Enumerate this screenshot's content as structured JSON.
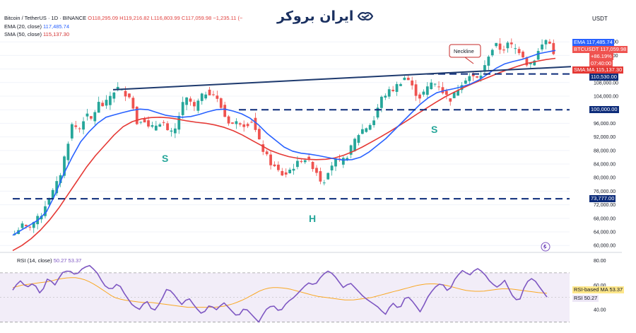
{
  "header": {
    "symbol": "Bitcoin / TetherUS · 1D · BINANCE",
    "ohlc": "O118,295.09 H119,216.82 L116,803.99 C117,059.98 −1,235.11 (−",
    "ema_label": "EMA (20, close)",
    "ema_value": "117,485.74",
    "sma_label": "SMA (50, close)",
    "sma_value": "115,137.30",
    "rsi_label": "RSI (14, close)",
    "rsi_values": "50.27 53.37"
  },
  "logo": {
    "text": "ایران بروکر",
    "icon": "handshake-icon"
  },
  "currency_label": "USDT",
  "colors": {
    "up": "#26a69a",
    "down": "#ef5350",
    "ema": "#2962ff",
    "sma": "#e53935",
    "rsi": "#7e57c2",
    "rsi_ma": "#f9a825",
    "annotation": "#0d47a1",
    "label_teal": "#26a69a"
  },
  "price_labels": [
    {
      "text": "EMA",
      "value": "117,485.74",
      "bg": "#2962ff",
      "fg": "#ffffff"
    },
    {
      "text": "BTCUSDT",
      "value": "117,059.98",
      "bg": "#ef5350",
      "fg": "#ffffff"
    },
    {
      "text": "",
      "value": "+86.19%",
      "bg": "#ef5350",
      "fg": "#ffffff"
    },
    {
      "text": "",
      "value": "07:40:00",
      "bg": "#ef5350",
      "fg": "#ffffff"
    },
    {
      "text": "SMA:MA",
      "value": "115,137.30",
      "bg": "#e53935",
      "fg": "#ffffff"
    },
    {
      "text": "",
      "value": "110,530.00",
      "bg": "#0d2c7a",
      "fg": "#ffffff"
    },
    {
      "text": "",
      "value": "100,000.00",
      "bg": "#0d2c7a",
      "fg": "#ffffff"
    },
    {
      "text": "",
      "value": "73,777.00",
      "bg": "#0d2c7a",
      "fg": "#ffffff"
    }
  ],
  "rsi_labels": [
    {
      "text": "RSI-based MA",
      "value": "53.37",
      "bg": "#fde68a",
      "fg": "#131722"
    },
    {
      "text": "RSI",
      "value": "50.27",
      "bg": "#ede7f6",
      "fg": "#131722"
    }
  ],
  "annotations": {
    "left_shoulder": "S",
    "head": "H",
    "right_shoulder": "S",
    "neckline": "Neckline"
  },
  "chart_data": {
    "type": "candlestick",
    "price_axis_ticks": [
      120000,
      116000,
      112000,
      108000,
      104000,
      100000,
      96000,
      92000,
      88000,
      84000,
      80000,
      76000,
      72000,
      68000,
      64000,
      60000
    ],
    "price_axis_tick_labels": [
      "120,000.00",
      "116,000.00",
      "112,000.00",
      "108,000.00",
      "104,000.00",
      "100,000.00",
      "96,000.00",
      "92,000.00",
      "88,000.00",
      "84,000.00",
      "80,000.00",
      "76,000.00",
      "72,000.00",
      "68,000.00",
      "64,000.00",
      "60,000.00"
    ],
    "price_range": [
      58800,
      124000
    ],
    "horizontal_levels": [
      110530,
      100000,
      73777
    ],
    "neckline": {
      "from": 105900,
      "to": 112700
    },
    "close_path": [
      63500,
      66000,
      65000,
      67000,
      68500,
      73000,
      76000,
      80000,
      88000,
      96000,
      94000,
      98500,
      97000,
      102000,
      101000,
      104500,
      106500,
      105000,
      104200,
      96000,
      98000,
      94000,
      95500,
      97000,
      92500,
      94000,
      101000,
      103500,
      100500,
      103500,
      105500,
      104500,
      101500,
      97000,
      95800,
      96500,
      95500,
      97000,
      91000,
      87000,
      84000,
      82000,
      80500,
      82500,
      84000,
      86000,
      84500,
      82000,
      78000,
      83000,
      85000,
      84500,
      87000,
      91000,
      94000,
      95000,
      97000,
      103000,
      105000,
      106000,
      108000,
      110000,
      106500,
      103500,
      105500,
      108000,
      107500,
      104500,
      103000,
      106000,
      109000,
      110000,
      109000,
      111000,
      117000,
      119000,
      117500,
      119500,
      118000,
      117000,
      113000,
      115000,
      118500,
      121000,
      117060
    ],
    "ema20_path": [
      63000,
      64500,
      66000,
      67500,
      70000,
      75000,
      81000,
      86000,
      90500,
      93500,
      96000,
      97800,
      98500,
      99200,
      99800,
      100200,
      100000,
      99200,
      98400,
      98000,
      97800,
      98000,
      98600,
      99400,
      100000,
      100200,
      99600,
      98800,
      97500,
      95500,
      93000,
      91000,
      89000,
      87800,
      87200,
      86900,
      86500,
      86000,
      85500,
      85200,
      85300,
      86000,
      87500,
      89500,
      91500,
      94000,
      96500,
      99000,
      101500,
      103500,
      105000,
      105700,
      106200,
      106800,
      107600,
      108800,
      110500,
      112200,
      113500,
      114200,
      114800,
      115600,
      116500,
      117000,
      117485
    ],
    "sma50_path": [
      58500,
      60000,
      62000,
      64500,
      67500,
      71000,
      75000,
      79000,
      83000,
      86500,
      89500,
      92500,
      95000,
      96500,
      97300,
      97700,
      97800,
      97600,
      97200,
      96700,
      96300,
      96000,
      95500,
      94800,
      93800,
      92500,
      91000,
      89500,
      88000,
      87000,
      86200,
      85700,
      85400,
      85300,
      85400,
      85800,
      86600,
      87700,
      89000,
      90500,
      92000,
      93600,
      95300,
      97000,
      98800,
      100500,
      102200,
      103800,
      105200,
      106500,
      107700,
      108800,
      109900,
      111000,
      112000,
      112900,
      113700,
      114300,
      114800,
      115137
    ],
    "rsi_ticks": [
      80,
      60,
      40
    ],
    "rsi_range": [
      24,
      86
    ],
    "rsi_band": [
      70,
      30
    ],
    "rsi_path": [
      56,
      64,
      58,
      62,
      52,
      66,
      60,
      70,
      72,
      68,
      74,
      76,
      70,
      60,
      56,
      62,
      52,
      44,
      40,
      48,
      38,
      46,
      58,
      52,
      44,
      50,
      42,
      36,
      44,
      40,
      46,
      40,
      34,
      42,
      36,
      30,
      40,
      44,
      38,
      46,
      50,
      56,
      62,
      60,
      68,
      72,
      66,
      58,
      62,
      56,
      50,
      46,
      42,
      36,
      46,
      40,
      52,
      46,
      38,
      50,
      58,
      62,
      54,
      66,
      72,
      68,
      74,
      70,
      62,
      58,
      64,
      52,
      46,
      62,
      66,
      58,
      50.27
    ],
    "rsi_ma_path": [
      58,
      60,
      61,
      62,
      63,
      65,
      66,
      66,
      64,
      60,
      55,
      50,
      48,
      47,
      46,
      46,
      45,
      44,
      43,
      42,
      42,
      42,
      42,
      43,
      45,
      48,
      52,
      56,
      58,
      58,
      57,
      55,
      53,
      51,
      50,
      49,
      48,
      48,
      49,
      50,
      52,
      54,
      56,
      58,
      60,
      61,
      61,
      60,
      58,
      56,
      55,
      55,
      56,
      57,
      57,
      56,
      55,
      54,
      53.37
    ],
    "current_price": 117059.98,
    "ema_value": 117485.74,
    "sma_value": 115137.3,
    "rsi_value": 50.27,
    "rsi_ma_value": 53.37
  }
}
